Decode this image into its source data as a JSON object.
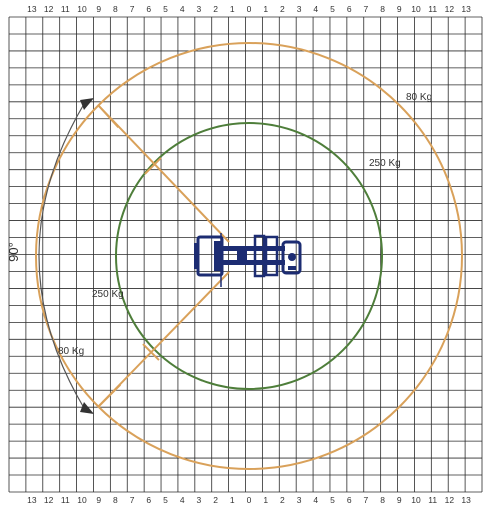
{
  "axis": {
    "top_labels": [
      "13",
      "12",
      "11",
      "10",
      "9",
      "8",
      "7",
      "6",
      "5",
      "4",
      "3",
      "2",
      "1",
      "0",
      "1",
      "2",
      "3",
      "4",
      "5",
      "6",
      "7",
      "8",
      "9",
      "10",
      "11",
      "12",
      "13"
    ],
    "bottom_labels": [
      "13",
      "12",
      "11",
      "10",
      "9",
      "8",
      "7",
      "6",
      "5",
      "4",
      "3",
      "2",
      "1",
      "0",
      "1",
      "2",
      "3",
      "4",
      "5",
      "6",
      "7",
      "8",
      "9",
      "10",
      "11",
      "12",
      "13"
    ]
  },
  "capacity_labels": {
    "outer_top_right": "80 Kg",
    "inner_top_right": "250 Kg",
    "inner_left": "250 Kg",
    "outer_left": "80 Kg"
  },
  "angle_label": "90°",
  "zones": [
    {
      "load": "80 Kg",
      "radius_units": 12.5
    },
    {
      "load": "250 Kg",
      "radius_units": 8.0
    }
  ],
  "slew_angle_degrees": 90,
  "colors": {
    "grid": "#2b2b2b",
    "outer_zone": "#d9a15a",
    "inner_zone": "#4e7e3a",
    "machine": "#1c2c72",
    "angle_arc": "#555555",
    "text": "#333333"
  }
}
